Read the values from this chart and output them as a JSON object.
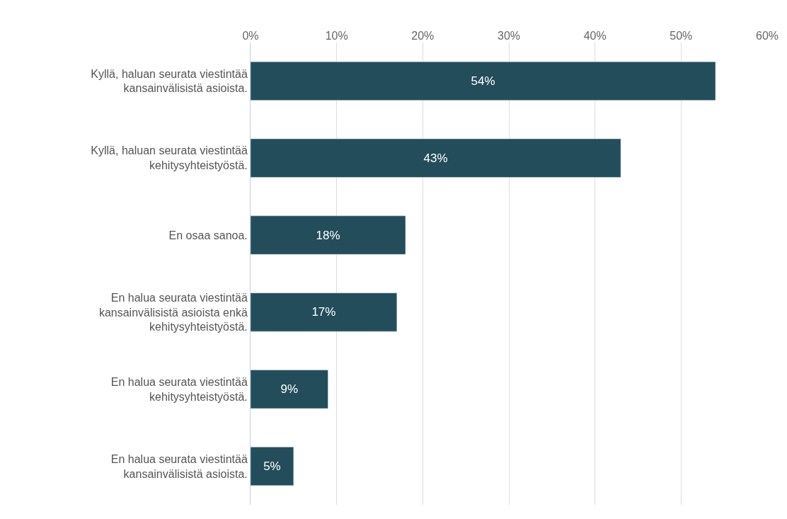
{
  "chart_data": {
    "type": "bar",
    "orientation": "horizontal",
    "categories": [
      "Kyllä, haluan seurata viestintää kansainvälisistä asioista.",
      "Kyllä, haluan seurata viestintää kehitysyhteistyöstä.",
      "En osaa sanoa.",
      "En halua seurata viestintää kansainvälisistä asioista enkä kehitysyhteistyöstä.",
      "En halua seurata viestintää kehitysyhteistyöstä.",
      "En halua seurata viestintää kansainvälisistä asioista."
    ],
    "values": [
      54,
      43,
      18,
      17,
      9,
      5
    ],
    "value_labels": [
      "54%",
      "43%",
      "18%",
      "17%",
      "9%",
      "5%"
    ],
    "color": "#234d5b",
    "xlim": [
      0,
      60
    ],
    "xticks": [
      {
        "value": 0,
        "label": "0%"
      },
      {
        "value": 10,
        "label": "10%"
      },
      {
        "value": 20,
        "label": "20%"
      },
      {
        "value": 30,
        "label": "30%"
      },
      {
        "value": 40,
        "label": "40%"
      },
      {
        "value": 50,
        "label": "50%"
      },
      {
        "value": 60,
        "label": "60%"
      }
    ],
    "grid": "x"
  }
}
